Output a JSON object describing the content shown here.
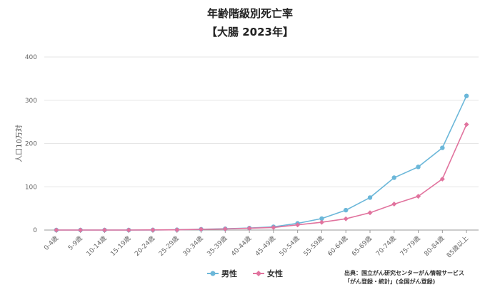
{
  "chart_data": {
    "type": "line",
    "title": "年齢階級別死亡率",
    "subtitle": "【大腸 2023年】",
    "ylabel": "人口10万対",
    "xlabel": "",
    "ylim": [
      0,
      400
    ],
    "yticks": [
      0,
      100,
      200,
      300,
      400
    ],
    "grid": true,
    "legend_position": "bottom",
    "categories": [
      "0-4歳",
      "5-9歳",
      "10-14歳",
      "15-19歳",
      "20-24歳",
      "25-29歳",
      "30-34歳",
      "35-39歳",
      "40-44歳",
      "45-49歳",
      "50-54歳",
      "55-59歳",
      "60-64歳",
      "65-69歳",
      "70-74歳",
      "75-79歳",
      "80-84歳",
      "85歳以上"
    ],
    "series": [
      {
        "name": "男性",
        "color": "#6bb7d9",
        "marker": "circle",
        "values": [
          0,
          0,
          0,
          0,
          0.2,
          0.6,
          1.8,
          3.0,
          4.6,
          7.4,
          15.5,
          26.5,
          46.0,
          75.0,
          121.0,
          146.0,
          190.0,
          310.0
        ]
      },
      {
        "name": "女性",
        "color": "#e1739e",
        "marker": "diamond",
        "values": [
          0,
          0,
          0,
          0,
          0.3,
          0.5,
          1.6,
          2.5,
          4.2,
          6.0,
          12.0,
          18.0,
          26.0,
          40.0,
          60.0,
          78.0,
          118.0,
          244.0
        ]
      }
    ]
  },
  "source": {
    "line1": "出典：国立がん研究センターがん情報サービス",
    "line2": "「がん登録・統計」(全国がん登録)"
  }
}
